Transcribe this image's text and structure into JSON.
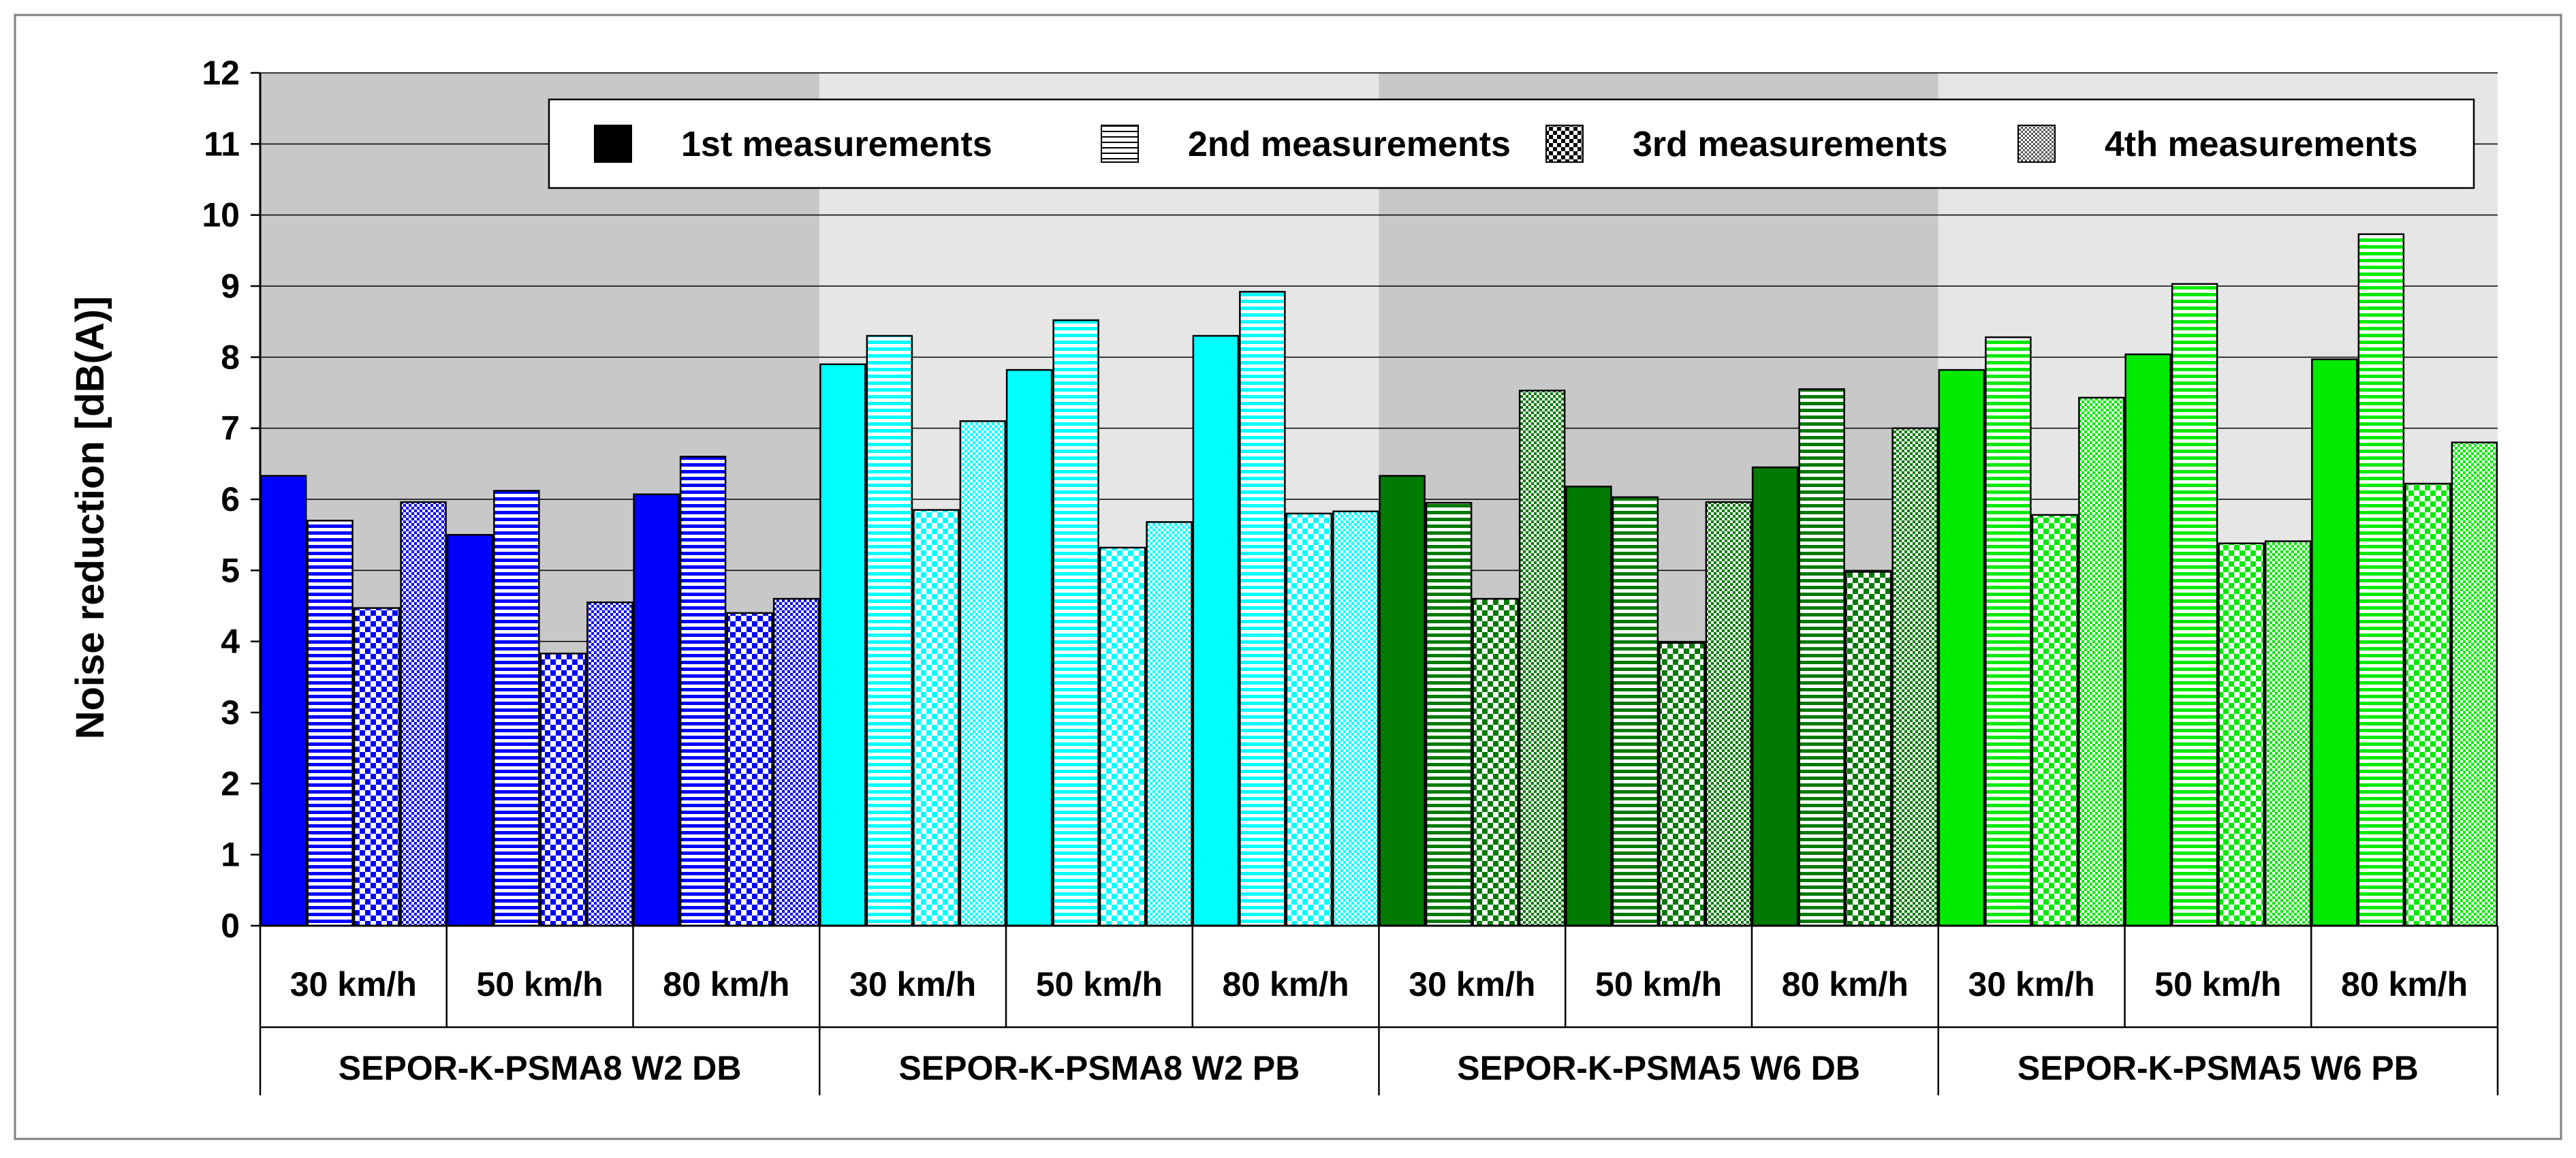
{
  "chart_data": {
    "type": "bar",
    "title": "",
    "ylabel": "Noise reduction  [dB(A)]",
    "xlabel": "",
    "ylim": [
      0,
      12
    ],
    "yticks": [
      "0",
      "1",
      "2",
      "3",
      "4",
      "5",
      "6",
      "7",
      "8",
      "9",
      "10",
      "11",
      "12"
    ],
    "grid": true,
    "legend_position": "top-right",
    "groups": [
      {
        "label": "SEPOR-K-PSMA8 W2 DB",
        "base_color": "#0000ff",
        "panel_color": "#c8c8c8"
      },
      {
        "label": "SEPOR-K-PSMA8 W2 PB",
        "base_color": "#00ffff",
        "panel_color": "#e6e6e6"
      },
      {
        "label": "SEPOR-K-PSMA5 W6 DB",
        "base_color": "#007a00",
        "panel_color": "#c8c8c8"
      },
      {
        "label": "SEPOR-K-PSMA5 W6 PB",
        "base_color": "#00ea00",
        "panel_color": "#e6e6e6"
      }
    ],
    "categories": [
      "30 km/h",
      "50 km/h",
      "80 km/h"
    ],
    "series": [
      {
        "name": "1st measurements",
        "pattern": "solid",
        "values": [
          [
            6.33,
            5.5,
            6.07
          ],
          [
            7.9,
            7.82,
            8.3
          ],
          [
            6.33,
            6.18,
            6.45
          ],
          [
            7.82,
            8.04,
            7.97
          ]
        ]
      },
      {
        "name": "2nd measurements",
        "pattern": "hlines",
        "values": [
          [
            5.7,
            6.12,
            6.6
          ],
          [
            8.3,
            8.52,
            8.92
          ],
          [
            5.95,
            6.03,
            7.55
          ],
          [
            8.28,
            9.03,
            9.73
          ]
        ]
      },
      {
        "name": "3rd measurements",
        "pattern": "checker",
        "values": [
          [
            4.47,
            3.83,
            4.4
          ],
          [
            5.85,
            5.32,
            5.8
          ],
          [
            4.6,
            3.98,
            4.98
          ],
          [
            5.78,
            5.38,
            6.22
          ]
        ]
      },
      {
        "name": "4th measurements",
        "pattern": "dots",
        "values": [
          [
            5.96,
            4.55,
            4.6
          ],
          [
            7.1,
            5.68,
            5.83
          ],
          [
            7.53,
            5.96,
            7.0
          ],
          [
            7.43,
            5.41,
            6.8
          ]
        ]
      }
    ]
  }
}
